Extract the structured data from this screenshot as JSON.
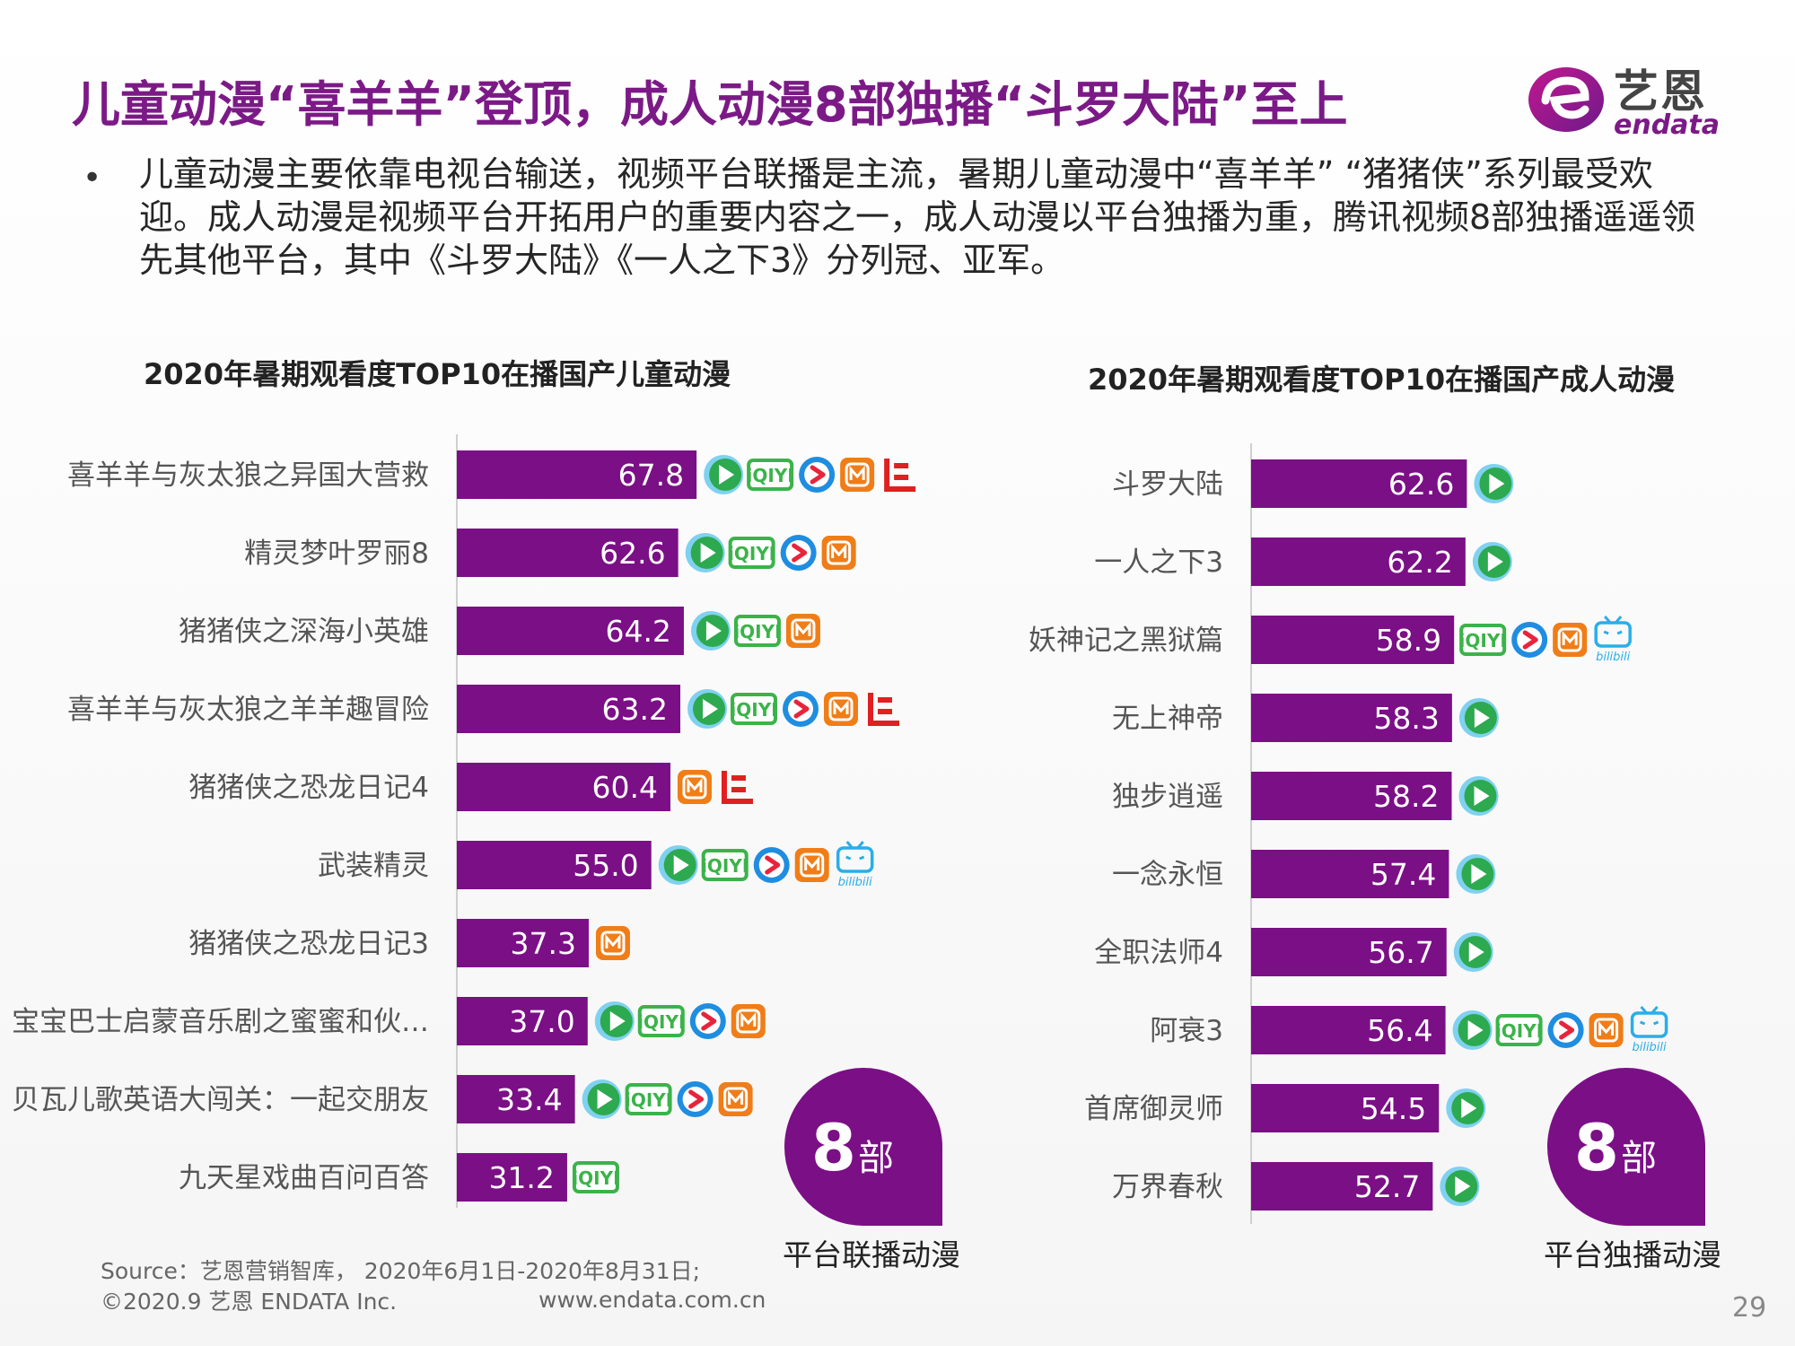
{
  "header": {
    "title": "儿童动漫“喜羊羊”登顶，成人动漫8部独播“斗罗大陆”至上",
    "logo_cn": "艺恩",
    "logo_en": "endata"
  },
  "summary": {
    "bullet": "•",
    "text": "儿童动漫主要依靠电视台输送，视频平台联播是主流，暑期儿童动漫中“喜羊羊” “猪猪侠”系列最受欢迎。成人动漫是视频平台开拓用户的重要内容之一，成人动漫以平台独播为重，腾讯视频8部独播遥遥领先其他平台，其中《斗罗大陆》《一人之下3》分列冠、亚军。"
  },
  "colors": {
    "bar": "#7b0f86",
    "title": "#7b1a86",
    "tencent": "#2da94f",
    "iqiyi": "#3bb34a",
    "youku": "#1f8de0",
    "mango": "#f07d17",
    "letv": "#e02020",
    "bilibili": "#29aee8"
  },
  "chart_data": [
    {
      "type": "bar",
      "orientation": "horizontal",
      "title": "2020年暑期观看度TOP10在播国产儿童动漫",
      "categories": [
        "喜羊羊与灰太狼之异国大营救",
        "精灵梦叶罗丽8",
        "猪猪侠之深海小英雄",
        "喜羊羊与灰太狼之羊羊趣冒险",
        "猪猪侠之恐龙日记4",
        "武装精灵",
        "猪猪侠之恐龙日记3",
        "宝宝巴士启蒙音乐剧之蜜蜜和伙…",
        "贝瓦儿歌英语大闯关：一起交朋友",
        "九天星戏曲百问百答"
      ],
      "values": [
        67.8,
        62.6,
        64.2,
        63.2,
        60.4,
        55.0,
        37.3,
        37.0,
        33.4,
        31.2
      ],
      "value_labels": [
        "67.8",
        "62.6",
        "64.2",
        "63.2",
        "60.4",
        "55.0",
        "37.3",
        "37.0",
        "33.4",
        "31.2"
      ],
      "platforms": [
        [
          "tencent",
          "iqiyi",
          "youku",
          "mango",
          "letv"
        ],
        [
          "tencent",
          "iqiyi",
          "youku",
          "mango"
        ],
        [
          "tencent",
          "iqiyi",
          "mango"
        ],
        [
          "tencent",
          "iqiyi",
          "youku",
          "mango",
          "letv"
        ],
        [
          "mango",
          "letv"
        ],
        [
          "tencent",
          "iqiyi",
          "youku",
          "mango",
          "bilibili"
        ],
        [
          "mango"
        ],
        [
          "tencent",
          "iqiyi",
          "youku",
          "mango"
        ],
        [
          "tencent",
          "iqiyi",
          "youku",
          "mango"
        ],
        [
          "iqiyi"
        ]
      ],
      "badge": {
        "number": "8",
        "unit": "部",
        "label": "平台联播动漫"
      }
    },
    {
      "type": "bar",
      "orientation": "horizontal",
      "title": "2020年暑期观看度TOP10在播国产成人动漫",
      "categories": [
        "斗罗大陆",
        "一人之下3",
        "妖神记之黑狱篇",
        "无上神帝",
        "独步逍遥",
        "一念永恒",
        "全职法师4",
        "阿衰3",
        "首席御灵师",
        "万界春秋"
      ],
      "values": [
        62.6,
        62.2,
        58.9,
        58.3,
        58.2,
        57.4,
        56.7,
        56.4,
        54.5,
        52.7
      ],
      "value_labels": [
        "62.6",
        "62.2",
        "58.9",
        "58.3",
        "58.2",
        "57.4",
        "56.7",
        "56.4",
        "54.5",
        "52.7"
      ],
      "platforms": [
        [
          "tencent"
        ],
        [
          "tencent"
        ],
        [
          "iqiyi",
          "youku",
          "mango",
          "bilibili"
        ],
        [
          "tencent"
        ],
        [
          "tencent"
        ],
        [
          "tencent"
        ],
        [
          "tencent"
        ],
        [
          "tencent",
          "iqiyi",
          "youku",
          "mango",
          "bilibili"
        ],
        [
          "tencent"
        ],
        [
          "tencent"
        ]
      ],
      "badge": {
        "number": "8",
        "unit": "部",
        "label": "平台独播动漫"
      }
    }
  ],
  "platform_text": {
    "iqiyi": "iQIYI",
    "bilibili": "bilibili"
  },
  "footer": {
    "source": "Source：艺恩营销智库， 2020年6月1日-2020年8月31日;",
    "copyright": "©2020.9 艺恩 ENDATA Inc.",
    "site": "www.endata.com.cn",
    "page": "29"
  }
}
